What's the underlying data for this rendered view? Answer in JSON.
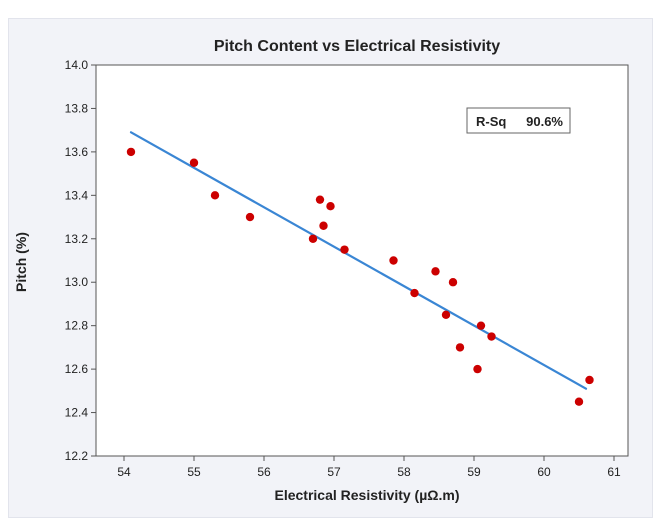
{
  "chart_data": {
    "type": "scatter",
    "title": "Pitch Content vs  Electrical Resistivity",
    "xlabel": "Electrical Resistivity (µΩ.m)",
    "ylabel": "Pitch  (%)",
    "xlim": [
      53.6,
      61.2
    ],
    "ylim": [
      12.2,
      14.0
    ],
    "xticks": [
      54,
      55,
      56,
      57,
      58,
      59,
      60,
      61
    ],
    "yticks": [
      12.2,
      12.4,
      12.6,
      12.8,
      13.0,
      13.2,
      13.4,
      13.6,
      13.8,
      14.0
    ],
    "grid": false,
    "points": [
      {
        "x": 54.1,
        "y": 13.6
      },
      {
        "x": 55.0,
        "y": 13.55
      },
      {
        "x": 55.3,
        "y": 13.4
      },
      {
        "x": 55.8,
        "y": 13.3
      },
      {
        "x": 56.7,
        "y": 13.2
      },
      {
        "x": 56.8,
        "y": 13.38
      },
      {
        "x": 56.85,
        "y": 13.26
      },
      {
        "x": 56.95,
        "y": 13.35
      },
      {
        "x": 57.15,
        "y": 13.15
      },
      {
        "x": 57.85,
        "y": 13.1
      },
      {
        "x": 58.15,
        "y": 12.95
      },
      {
        "x": 58.45,
        "y": 13.05
      },
      {
        "x": 58.6,
        "y": 12.85
      },
      {
        "x": 58.7,
        "y": 13.0
      },
      {
        "x": 58.8,
        "y": 12.7
      },
      {
        "x": 59.05,
        "y": 12.6
      },
      {
        "x": 59.1,
        "y": 12.8
      },
      {
        "x": 59.25,
        "y": 12.75
      },
      {
        "x": 60.5,
        "y": 12.45
      },
      {
        "x": 60.65,
        "y": 12.55
      }
    ],
    "fit_line": {
      "x": [
        54.1,
        60.6
      ],
      "y": [
        13.69,
        12.51
      ]
    },
    "annotation": {
      "label": "R-Sq",
      "value": "90.6%"
    },
    "colors": {
      "points": "#cc0000",
      "fit_line": "#3a86d4"
    }
  }
}
